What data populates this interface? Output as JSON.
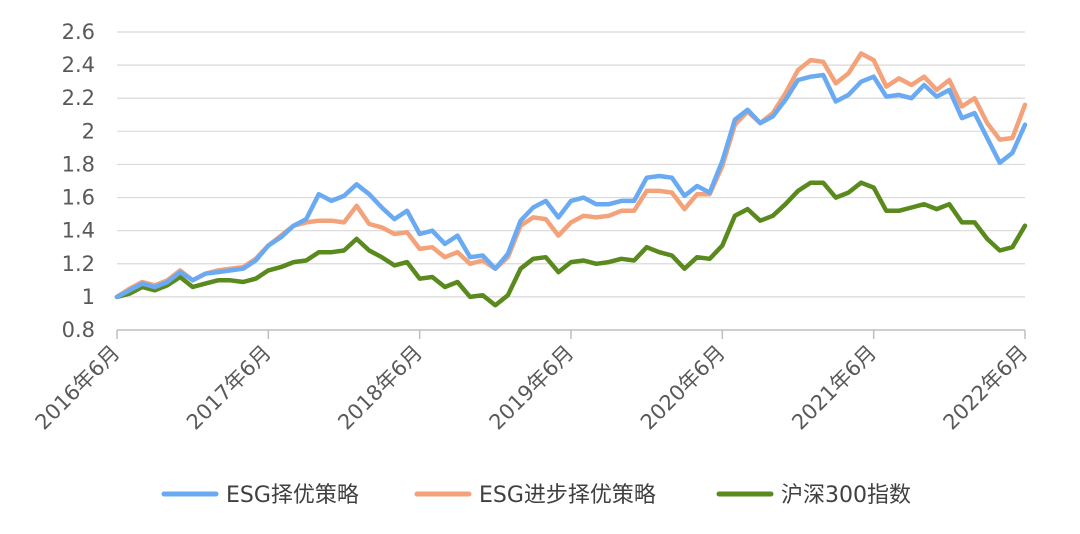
{
  "chart_data": {
    "type": "line",
    "title": "",
    "xlabel": "",
    "ylabel": "",
    "ylim": [
      0.8,
      2.6
    ],
    "y_ticks": [
      "0.8",
      "1",
      "1.2",
      "1.4",
      "1.6",
      "1.8",
      "2",
      "2.2",
      "2.4",
      "2.6"
    ],
    "x_tick_labels": [
      "2016年6月",
      "2017年6月",
      "2018年6月",
      "2019年6月",
      "2020年6月",
      "2021年6月",
      "2022年6月"
    ],
    "x_tick_months": [
      0,
      12,
      24,
      36,
      48,
      60,
      72
    ],
    "grid": true,
    "legend": "bottom",
    "series": [
      {
        "name": "ESG择优策略",
        "color": "#6aaaf2",
        "values": [
          1.0,
          1.04,
          1.08,
          1.06,
          1.09,
          1.15,
          1.1,
          1.14,
          1.15,
          1.16,
          1.17,
          1.22,
          1.31,
          1.36,
          1.43,
          1.47,
          1.62,
          1.58,
          1.61,
          1.68,
          1.62,
          1.54,
          1.47,
          1.52,
          1.38,
          1.4,
          1.32,
          1.37,
          1.24,
          1.25,
          1.17,
          1.26,
          1.46,
          1.54,
          1.58,
          1.48,
          1.58,
          1.6,
          1.56,
          1.56,
          1.58,
          1.58,
          1.72,
          1.73,
          1.72,
          1.61,
          1.67,
          1.63,
          1.82,
          2.07,
          2.13,
          2.05,
          2.09,
          2.19,
          2.31,
          2.33,
          2.34,
          2.18,
          2.22,
          2.3,
          2.33,
          2.21,
          2.22,
          2.2,
          2.28,
          2.21,
          2.25,
          2.08,
          2.11,
          1.96,
          1.81,
          1.87,
          2.04
        ]
      },
      {
        "name": "ESG进步择优策略",
        "color": "#f4a27a",
        "values": [
          1.0,
          1.05,
          1.09,
          1.07,
          1.1,
          1.16,
          1.1,
          1.14,
          1.16,
          1.17,
          1.18,
          1.23,
          1.31,
          1.37,
          1.43,
          1.45,
          1.46,
          1.46,
          1.45,
          1.55,
          1.44,
          1.42,
          1.38,
          1.39,
          1.29,
          1.3,
          1.24,
          1.27,
          1.2,
          1.22,
          1.17,
          1.24,
          1.43,
          1.48,
          1.47,
          1.37,
          1.45,
          1.49,
          1.48,
          1.49,
          1.52,
          1.52,
          1.64,
          1.64,
          1.63,
          1.53,
          1.62,
          1.62,
          1.79,
          2.04,
          2.12,
          2.05,
          2.11,
          2.23,
          2.37,
          2.43,
          2.42,
          2.29,
          2.35,
          2.47,
          2.43,
          2.27,
          2.32,
          2.28,
          2.33,
          2.25,
          2.31,
          2.15,
          2.2,
          2.05,
          1.95,
          1.96,
          2.16
        ]
      },
      {
        "name": "沪深300指数",
        "color": "#5a8a1e",
        "values": [
          1.0,
          1.02,
          1.06,
          1.04,
          1.07,
          1.12,
          1.06,
          1.08,
          1.1,
          1.1,
          1.09,
          1.11,
          1.16,
          1.18,
          1.21,
          1.22,
          1.27,
          1.27,
          1.28,
          1.35,
          1.28,
          1.24,
          1.19,
          1.21,
          1.11,
          1.12,
          1.06,
          1.09,
          1.0,
          1.01,
          0.95,
          1.01,
          1.17,
          1.23,
          1.24,
          1.15,
          1.21,
          1.22,
          1.2,
          1.21,
          1.23,
          1.22,
          1.3,
          1.27,
          1.25,
          1.17,
          1.24,
          1.23,
          1.31,
          1.49,
          1.53,
          1.46,
          1.49,
          1.56,
          1.64,
          1.69,
          1.69,
          1.6,
          1.63,
          1.69,
          1.66,
          1.52,
          1.52,
          1.54,
          1.56,
          1.53,
          1.56,
          1.45,
          1.45,
          1.35,
          1.28,
          1.3,
          1.43
        ]
      }
    ]
  }
}
